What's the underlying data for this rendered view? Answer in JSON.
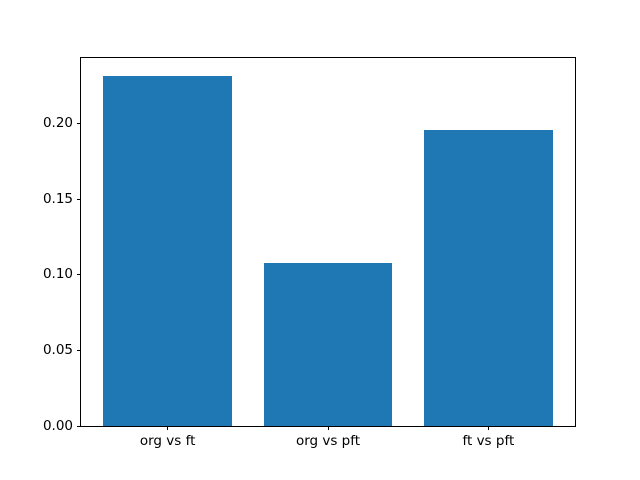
{
  "chart_data": {
    "type": "bar",
    "categories": [
      "org vs ft",
      "org vs pft",
      "ft vs pft"
    ],
    "values": [
      0.232,
      0.108,
      0.196
    ],
    "title": "",
    "xlabel": "",
    "ylabel": "",
    "ylim": [
      0,
      0.2436
    ],
    "yticks": [
      0.0,
      0.05,
      0.1,
      0.15,
      0.2
    ],
    "ytick_labels": [
      "0.00",
      "0.05",
      "0.10",
      "0.15",
      "0.20"
    ],
    "bar_color": "#1f77b4",
    "grid": false,
    "legend": null,
    "background": "#ffffff"
  }
}
